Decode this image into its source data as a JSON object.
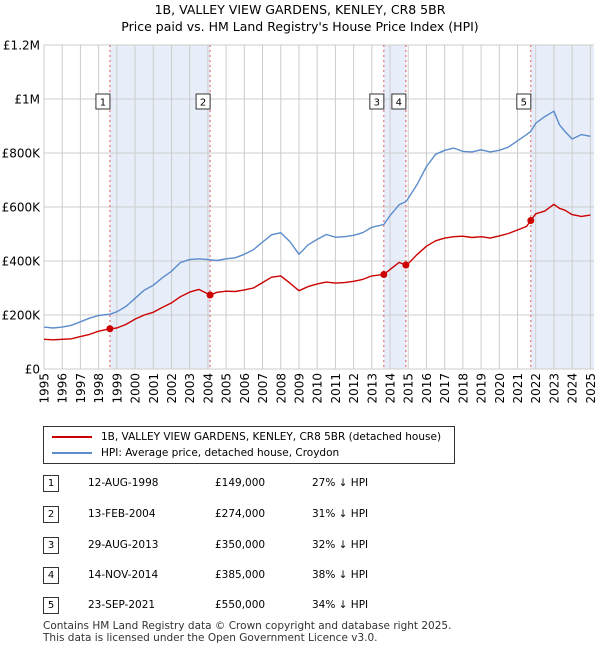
{
  "title_line1": "1B, VALLEY VIEW GARDENS, KENLEY, CR8 5BR",
  "title_line2": "Price paid vs. HM Land Registry's House Price Index (HPI)",
  "chart_data": {
    "type": "line",
    "title": "1B, VALLEY VIEW GARDENS, KENLEY, CR8 5BR",
    "subtitle": "Price paid vs. HM Land Registry's House Price Index (HPI)",
    "xlim": [
      1995,
      2025.2
    ],
    "ylim": [
      0,
      1200000
    ],
    "x_ticks": [
      1995,
      1996,
      1997,
      1998,
      1999,
      2000,
      2001,
      2002,
      2003,
      2004,
      2005,
      2006,
      2007,
      2008,
      2009,
      2010,
      2011,
      2012,
      2013,
      2014,
      2015,
      2016,
      2017,
      2018,
      2019,
      2020,
      2021,
      2022,
      2023,
      2024,
      2025
    ],
    "y_ticks": [
      {
        "value": 0,
        "label": "£0"
      },
      {
        "value": 200000,
        "label": "£200K"
      },
      {
        "value": 400000,
        "label": "£400K"
      },
      {
        "value": 600000,
        "label": "£600K"
      },
      {
        "value": 800000,
        "label": "£800K"
      },
      {
        "value": 1000000,
        "label": "£1M"
      },
      {
        "value": 1200000,
        "label": "£1.2M"
      }
    ],
    "grid": true,
    "shaded_periods": [
      [
        1998.62,
        2004.12
      ],
      [
        2013.66,
        2014.87
      ],
      [
        2021.73,
        2025.2
      ]
    ],
    "series": [
      {
        "name": "1B, VALLEY VIEW GARDENS, KENLEY, CR8 5BR (detached house)",
        "color": "#cc0000",
        "x": [
          1995,
          1995.5,
          1996,
          1996.5,
          1997,
          1997.5,
          1998,
          1998.62,
          1999,
          1999.5,
          2000,
          2000.5,
          2001,
          2001.5,
          2002,
          2002.5,
          2003,
          2003.5,
          2004.12,
          2004.5,
          2005,
          2005.5,
          2006,
          2006.5,
          2007,
          2007.5,
          2008,
          2008.5,
          2009,
          2009.5,
          2010,
          2010.5,
          2011,
          2011.5,
          2012,
          2012.5,
          2013,
          2013.66,
          2014,
          2014.5,
          2014.87,
          2015,
          2015.5,
          2016,
          2016.5,
          2017,
          2017.5,
          2018,
          2018.5,
          2019,
          2019.5,
          2020,
          2020.5,
          2021,
          2021.5,
          2021.73,
          2022,
          2022.5,
          2023,
          2023.3,
          2023.6,
          2024,
          2024.5,
          2025
        ],
        "values": [
          110000,
          108000,
          110000,
          112000,
          120000,
          128000,
          140000,
          149000,
          152000,
          165000,
          185000,
          200000,
          210000,
          228000,
          245000,
          268000,
          285000,
          295000,
          274000,
          284000,
          288000,
          287000,
          293000,
          300000,
          320000,
          340000,
          345000,
          318000,
          290000,
          305000,
          315000,
          322000,
          318000,
          320000,
          325000,
          332000,
          345000,
          350000,
          368000,
          395000,
          385000,
          390000,
          425000,
          455000,
          475000,
          485000,
          490000,
          492000,
          487000,
          490000,
          485000,
          493000,
          502000,
          515000,
          528000,
          550000,
          575000,
          585000,
          610000,
          595000,
          588000,
          572000,
          565000,
          570000
        ]
      },
      {
        "name": "HPI: Average price, detached house, Croydon",
        "color": "#5b8ccc",
        "x": [
          1995,
          1995.5,
          1996,
          1996.5,
          1997,
          1997.5,
          1998,
          1998.62,
          1999,
          1999.5,
          2000,
          2000.5,
          2001,
          2001.5,
          2002,
          2002.5,
          2003,
          2003.5,
          2004,
          2004.5,
          2005,
          2005.5,
          2006,
          2006.5,
          2007,
          2007.5,
          2008,
          2008.5,
          2009,
          2009.5,
          2010,
          2010.5,
          2011,
          2011.5,
          2012,
          2012.5,
          2013,
          2013.66,
          2014,
          2014.5,
          2014.87,
          2015,
          2015.5,
          2016,
          2016.5,
          2017,
          2017.5,
          2018,
          2018.5,
          2019,
          2019.5,
          2020,
          2020.5,
          2021,
          2021.5,
          2021.73,
          2022,
          2022.5,
          2023,
          2023.3,
          2023.6,
          2024,
          2024.5,
          2025
        ],
        "values": [
          155000,
          152000,
          155000,
          162000,
          175000,
          188000,
          198000,
          203000,
          212000,
          232000,
          262000,
          292000,
          310000,
          338000,
          362000,
          395000,
          405000,
          408000,
          405000,
          402000,
          408000,
          412000,
          425000,
          442000,
          470000,
          497000,
          505000,
          472000,
          425000,
          460000,
          480000,
          498000,
          488000,
          490000,
          495000,
          505000,
          525000,
          535000,
          568000,
          608000,
          620000,
          632000,
          685000,
          750000,
          795000,
          810000,
          818000,
          806000,
          804000,
          812000,
          804000,
          810000,
          822000,
          845000,
          868000,
          880000,
          910000,
          935000,
          955000,
          905000,
          880000,
          852000,
          868000,
          862000
        ]
      }
    ],
    "annotations": [
      {
        "label": "1",
        "x": 1998.62,
        "y": 149000
      },
      {
        "label": "2",
        "x": 2004.12,
        "y": 274000
      },
      {
        "label": "3",
        "x": 2013.66,
        "y": 350000
      },
      {
        "label": "4",
        "x": 2014.87,
        "y": 385000
      },
      {
        "label": "5",
        "x": 2021.73,
        "y": 550000
      }
    ]
  },
  "legend": {
    "red_label": "1B, VALLEY VIEW GARDENS, KENLEY, CR8 5BR (detached house)",
    "blue_label": "HPI: Average price, detached house, Croydon"
  },
  "transactions": [
    {
      "num": "1",
      "date": "12-AUG-1998",
      "price": "£149,000",
      "hpi": "27% ↓ HPI"
    },
    {
      "num": "2",
      "date": "13-FEB-2004",
      "price": "£274,000",
      "hpi": "31% ↓ HPI"
    },
    {
      "num": "3",
      "date": "29-AUG-2013",
      "price": "£350,000",
      "hpi": "32% ↓ HPI"
    },
    {
      "num": "4",
      "date": "14-NOV-2014",
      "price": "£385,000",
      "hpi": "38% ↓ HPI"
    },
    {
      "num": "5",
      "date": "23-SEP-2021",
      "price": "£550,000",
      "hpi": "34% ↓ HPI"
    }
  ],
  "footer": {
    "line1": "Contains HM Land Registry data © Crown copyright and database right 2025.",
    "line2": "This data is licensed under the Open Government Licence v3.0."
  }
}
